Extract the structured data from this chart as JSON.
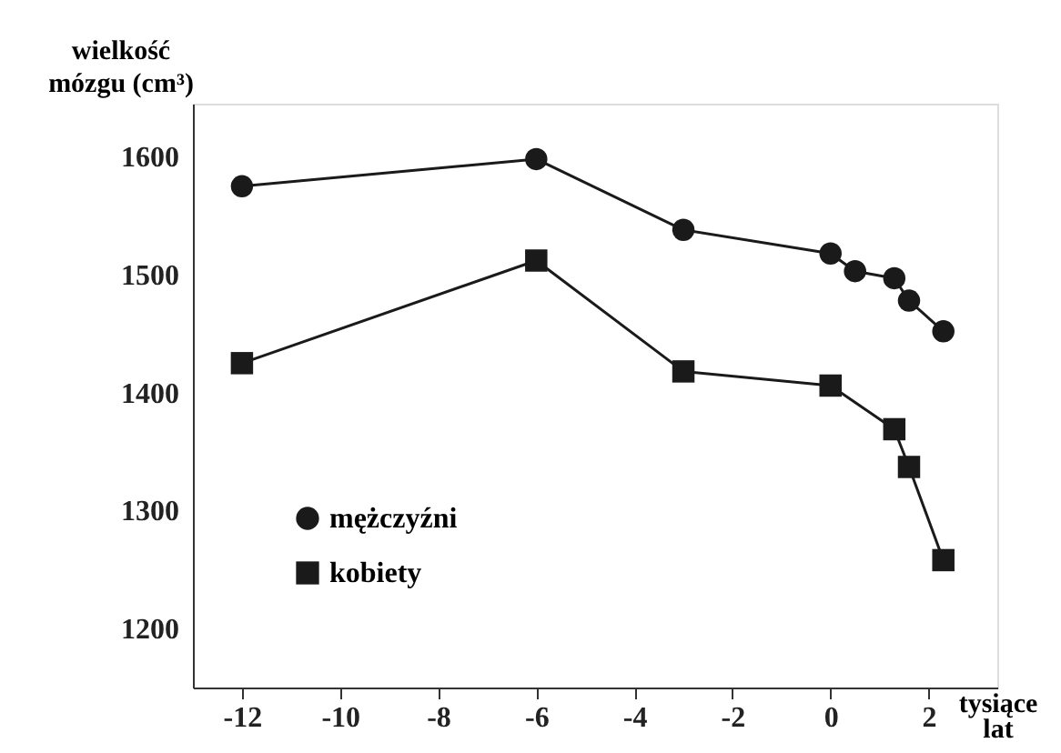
{
  "chart_data": {
    "type": "line",
    "xlabel": "tysiące lat",
    "ylabel": "wielkość mózgu (cm³)",
    "xlim": [
      -13,
      3.4
    ],
    "xticks": [
      -12,
      -10,
      -8,
      -6,
      -4,
      -2,
      0,
      2
    ],
    "ylim": [
      1150,
      1645
    ],
    "yticks": [
      1200,
      1300,
      1400,
      1500,
      1600
    ],
    "grid": false,
    "legend": "bottom left",
    "line_style": "solid",
    "series": [
      {
        "name": "mężczyźni",
        "color": "#1a1a1a",
        "marker": "circle",
        "x": [
          -12,
          -6,
          -3,
          0,
          0.5,
          1.3,
          1.6,
          2.3
        ],
        "values": [
          1575,
          1598,
          1538,
          1518,
          1503,
          1497,
          1478,
          1452
        ]
      },
      {
        "name": "kobiety",
        "color": "#1a1a1a",
        "marker": "square",
        "x": [
          -12,
          -6,
          -3,
          0,
          1.3,
          1.6,
          2.3
        ],
        "values": [
          1425,
          1512,
          1418,
          1406,
          1369,
          1337,
          1258
        ]
      }
    ]
  }
}
